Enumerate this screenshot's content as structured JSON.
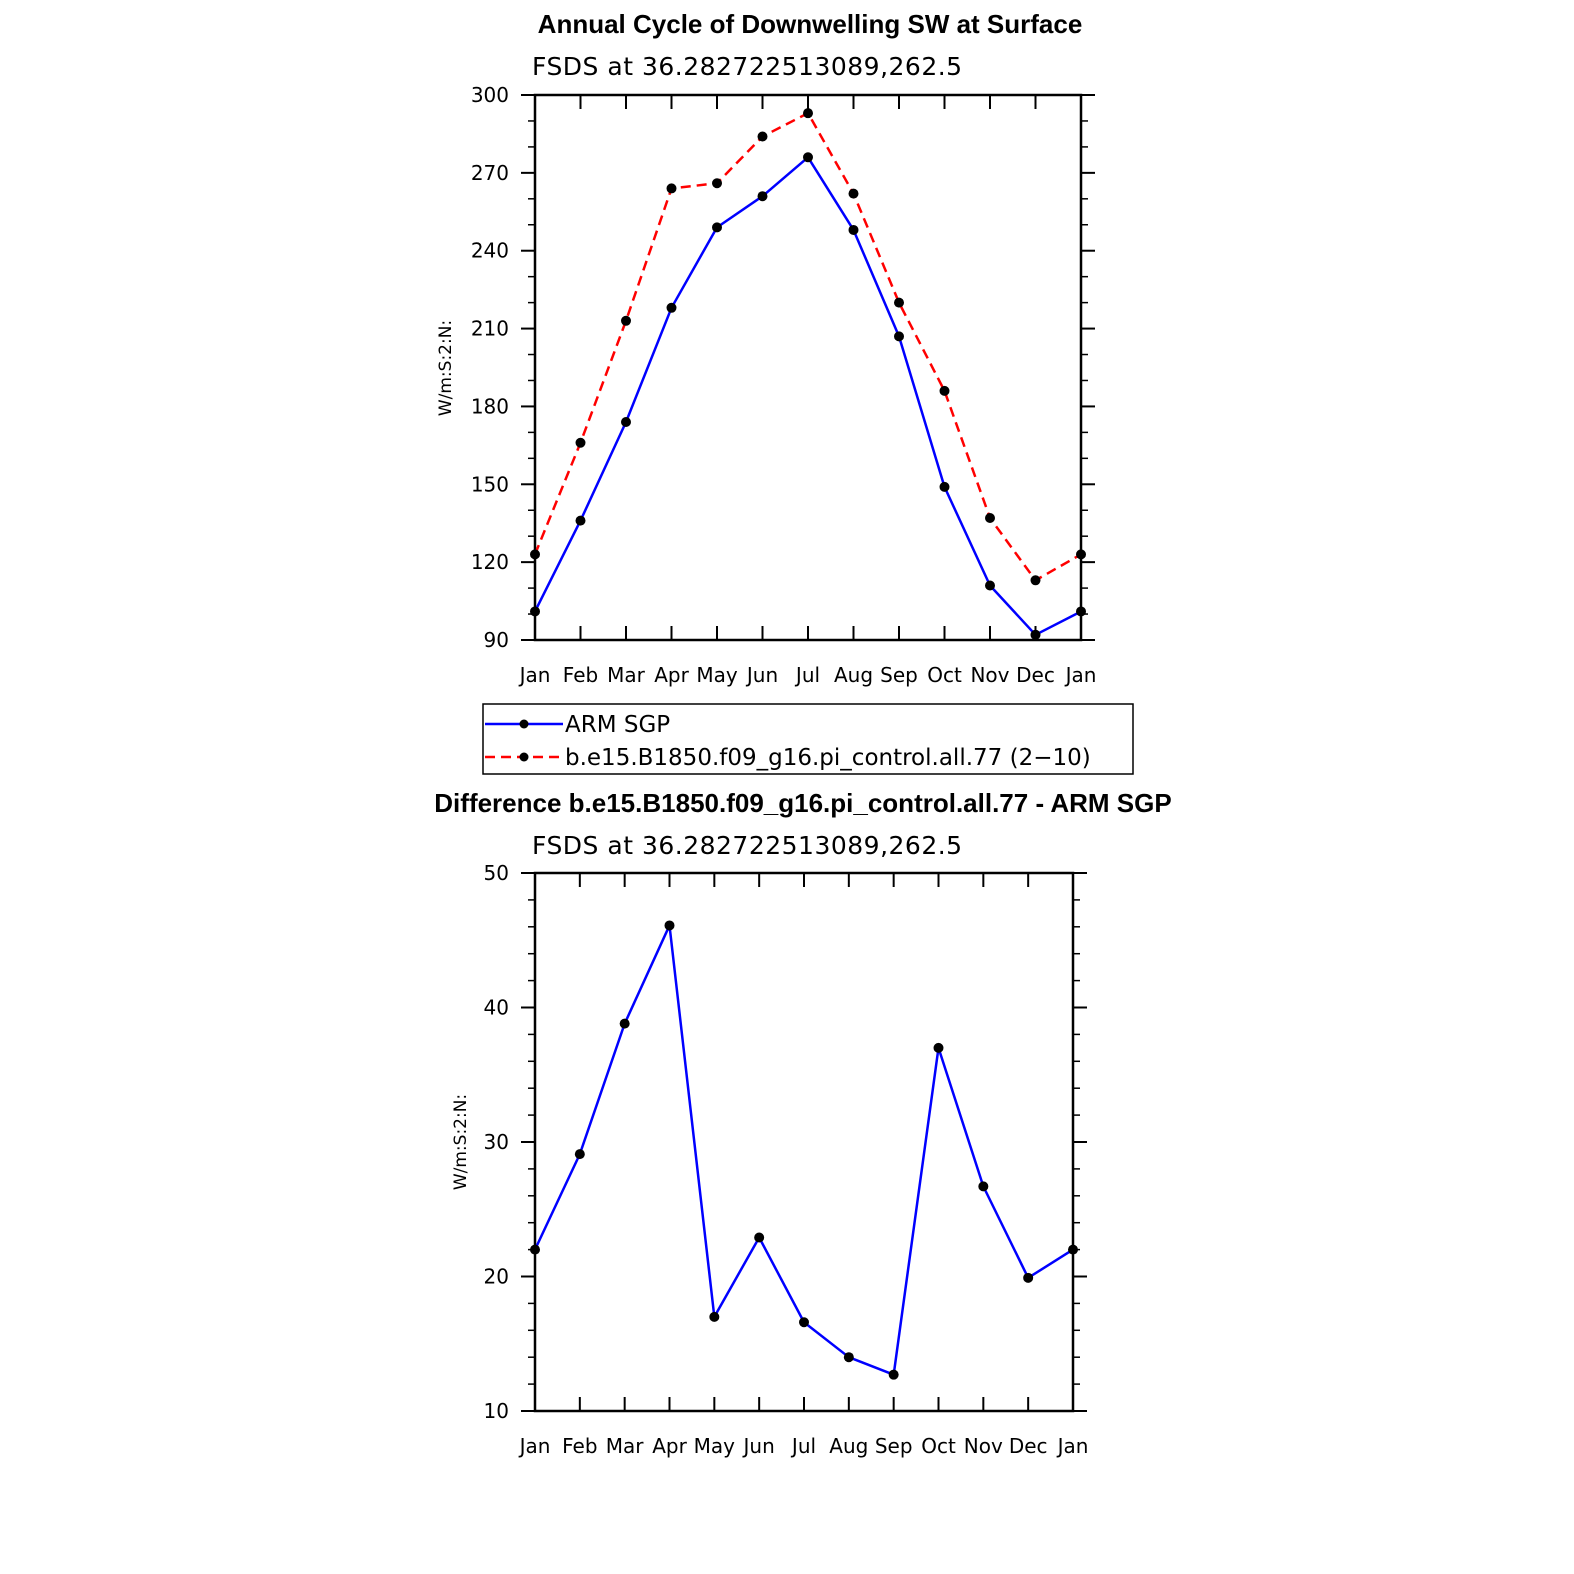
{
  "chart_data": [
    {
      "type": "line",
      "title": "Annual Cycle of Downwelling SW at Surface",
      "subtitle": "FSDS at 36.282722513089,262.5",
      "ylabel": "W/m:S:2:N:",
      "xlabel": "",
      "categories": [
        "Jan",
        "Feb",
        "Mar",
        "Apr",
        "May",
        "Jun",
        "Jul",
        "Aug",
        "Sep",
        "Oct",
        "Nov",
        "Dec",
        "Jan"
      ],
      "ylim": [
        90,
        300
      ],
      "yticks": [
        90,
        120,
        150,
        180,
        210,
        240,
        270,
        300
      ],
      "ytick_labels": [
        "90",
        "120",
        "150",
        "180",
        "210",
        "240",
        "270",
        "300"
      ],
      "series": [
        {
          "name": "ARM SGP",
          "color": "#0000ff",
          "dash": "solid",
          "values": [
            101,
            136,
            174,
            218,
            249,
            261,
            276,
            248,
            207,
            149,
            111,
            92,
            101
          ]
        },
        {
          "name": "b.e15.B1850.f09_g16.pi_control.all.77 (2−10)",
          "color": "#ff0000",
          "dash": "dashed",
          "values": [
            123,
            166,
            213,
            264,
            266,
            284,
            293,
            262,
            220,
            186,
            137,
            113,
            123
          ]
        }
      ],
      "legend": {
        "placement": "below",
        "entries": [
          "ARM SGP",
          "b.e15.B1850.f09_g16.pi_control.all.77 (2−10)"
        ]
      }
    },
    {
      "type": "line",
      "title": "Difference b.e15.B1850.f09_g16.pi_control.all.77 - ARM SGP",
      "subtitle": "FSDS at 36.282722513089,262.5",
      "ylabel": "W/m:S:2:N:",
      "xlabel": "",
      "categories": [
        "Jan",
        "Feb",
        "Mar",
        "Apr",
        "May",
        "Jun",
        "Jul",
        "Aug",
        "Sep",
        "Oct",
        "Nov",
        "Dec",
        "Jan"
      ],
      "ylim": [
        10,
        50
      ],
      "yticks": [
        10,
        20,
        30,
        40,
        50
      ],
      "ytick_labels": [
        "10",
        "20",
        "30",
        "40",
        "50"
      ],
      "series": [
        {
          "name": "Difference",
          "color": "#0000ff",
          "dash": "solid",
          "values": [
            22.0,
            29.1,
            38.8,
            46.1,
            17.0,
            22.9,
            16.6,
            14.0,
            12.7,
            37.0,
            26.7,
            19.9,
            22.0
          ]
        }
      ]
    }
  ]
}
